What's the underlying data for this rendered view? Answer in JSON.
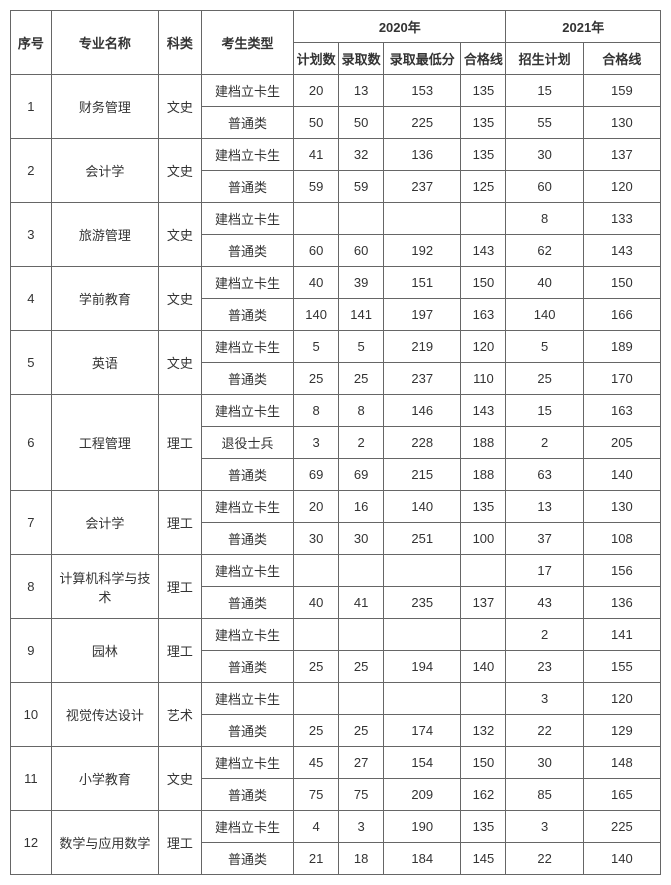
{
  "headers": {
    "seq": "序号",
    "major": "专业名称",
    "subject": "科类",
    "type": "考生类型",
    "year2020": "2020年",
    "year2021": "2021年",
    "planCount": "计划数",
    "admitCount": "录取数",
    "lowScore": "录取最低分",
    "passLine": "合格线",
    "enrollPlan": "招生计划",
    "passLine2": "合格线"
  },
  "types": {
    "jdlk": "建档立卡生",
    "pt": "普通类",
    "tysb": "退役士兵"
  },
  "rows": [
    {
      "seq": "1",
      "major": "财务管理",
      "subject": "文史",
      "sub": [
        {
          "type": "jdlk",
          "plan": "20",
          "admit": "13",
          "low": "153",
          "pass": "135",
          "plan2": "15",
          "pass2": "159"
        },
        {
          "type": "pt",
          "plan": "50",
          "admit": "50",
          "low": "225",
          "pass": "135",
          "plan2": "55",
          "pass2": "130"
        }
      ]
    },
    {
      "seq": "2",
      "major": "会计学",
      "subject": "文史",
      "sub": [
        {
          "type": "jdlk",
          "plan": "41",
          "admit": "32",
          "low": "136",
          "pass": "135",
          "plan2": "30",
          "pass2": "137"
        },
        {
          "type": "pt",
          "plan": "59",
          "admit": "59",
          "low": "237",
          "pass": "125",
          "plan2": "60",
          "pass2": "120"
        }
      ]
    },
    {
      "seq": "3",
      "major": "旅游管理",
      "subject": "文史",
      "sub": [
        {
          "type": "jdlk",
          "plan": "",
          "admit": "",
          "low": "",
          "pass": "",
          "plan2": "8",
          "pass2": "133"
        },
        {
          "type": "pt",
          "plan": "60",
          "admit": "60",
          "low": "192",
          "pass": "143",
          "plan2": "62",
          "pass2": "143"
        }
      ]
    },
    {
      "seq": "4",
      "major": "学前教育",
      "subject": "文史",
      "sub": [
        {
          "type": "jdlk",
          "plan": "40",
          "admit": "39",
          "low": "151",
          "pass": "150",
          "plan2": "40",
          "pass2": "150"
        },
        {
          "type": "pt",
          "plan": "140",
          "admit": "141",
          "low": "197",
          "pass": "163",
          "plan2": "140",
          "pass2": "166"
        }
      ]
    },
    {
      "seq": "5",
      "major": "英语",
      "subject": "文史",
      "sub": [
        {
          "type": "jdlk",
          "plan": "5",
          "admit": "5",
          "low": "219",
          "pass": "120",
          "plan2": "5",
          "pass2": "189"
        },
        {
          "type": "pt",
          "plan": "25",
          "admit": "25",
          "low": "237",
          "pass": "110",
          "plan2": "25",
          "pass2": "170"
        }
      ]
    },
    {
      "seq": "6",
      "major": "工程管理",
      "subject": "理工",
      "sub": [
        {
          "type": "jdlk",
          "plan": "8",
          "admit": "8",
          "low": "146",
          "pass": "143",
          "plan2": "15",
          "pass2": "163"
        },
        {
          "type": "tysb",
          "plan": "3",
          "admit": "2",
          "low": "228",
          "pass": "188",
          "plan2": "2",
          "pass2": "205"
        },
        {
          "type": "pt",
          "plan": "69",
          "admit": "69",
          "low": "215",
          "pass": "188",
          "plan2": "63",
          "pass2": "140"
        }
      ]
    },
    {
      "seq": "7",
      "major": "会计学",
      "subject": "理工",
      "sub": [
        {
          "type": "jdlk",
          "plan": "20",
          "admit": "16",
          "low": "140",
          "pass": "135",
          "plan2": "13",
          "pass2": "130"
        },
        {
          "type": "pt",
          "plan": "30",
          "admit": "30",
          "low": "251",
          "pass": "100",
          "plan2": "37",
          "pass2": "108"
        }
      ]
    },
    {
      "seq": "8",
      "major": "计算机科学与技术",
      "subject": "理工",
      "sub": [
        {
          "type": "jdlk",
          "plan": "",
          "admit": "",
          "low": "",
          "pass": "",
          "plan2": "17",
          "pass2": "156"
        },
        {
          "type": "pt",
          "plan": "40",
          "admit": "41",
          "low": "235",
          "pass": "137",
          "plan2": "43",
          "pass2": "136"
        }
      ]
    },
    {
      "seq": "9",
      "major": "园林",
      "subject": "理工",
      "sub": [
        {
          "type": "jdlk",
          "plan": "",
          "admit": "",
          "low": "",
          "pass": "",
          "plan2": "2",
          "pass2": "141"
        },
        {
          "type": "pt",
          "plan": "25",
          "admit": "25",
          "low": "194",
          "pass": "140",
          "plan2": "23",
          "pass2": "155"
        }
      ]
    },
    {
      "seq": "10",
      "major": "视觉传达设计",
      "subject": "艺术",
      "sub": [
        {
          "type": "jdlk",
          "plan": "",
          "admit": "",
          "low": "",
          "pass": "",
          "plan2": "3",
          "pass2": "120"
        },
        {
          "type": "pt",
          "plan": "25",
          "admit": "25",
          "low": "174",
          "pass": "132",
          "plan2": "22",
          "pass2": "129"
        }
      ]
    },
    {
      "seq": "11",
      "major": "小学教育",
      "subject": "文史",
      "sub": [
        {
          "type": "jdlk",
          "plan": "45",
          "admit": "27",
          "low": "154",
          "pass": "150",
          "plan2": "30",
          "pass2": "148"
        },
        {
          "type": "pt",
          "plan": "75",
          "admit": "75",
          "low": "209",
          "pass": "162",
          "plan2": "85",
          "pass2": "165"
        }
      ]
    },
    {
      "seq": "12",
      "major": "数学与应用数学",
      "subject": "理工",
      "sub": [
        {
          "type": "jdlk",
          "plan": "4",
          "admit": "3",
          "low": "190",
          "pass": "135",
          "plan2": "3",
          "pass2": "225"
        },
        {
          "type": "pt",
          "plan": "21",
          "admit": "18",
          "low": "184",
          "pass": "145",
          "plan2": "22",
          "pass2": "140"
        }
      ]
    }
  ]
}
